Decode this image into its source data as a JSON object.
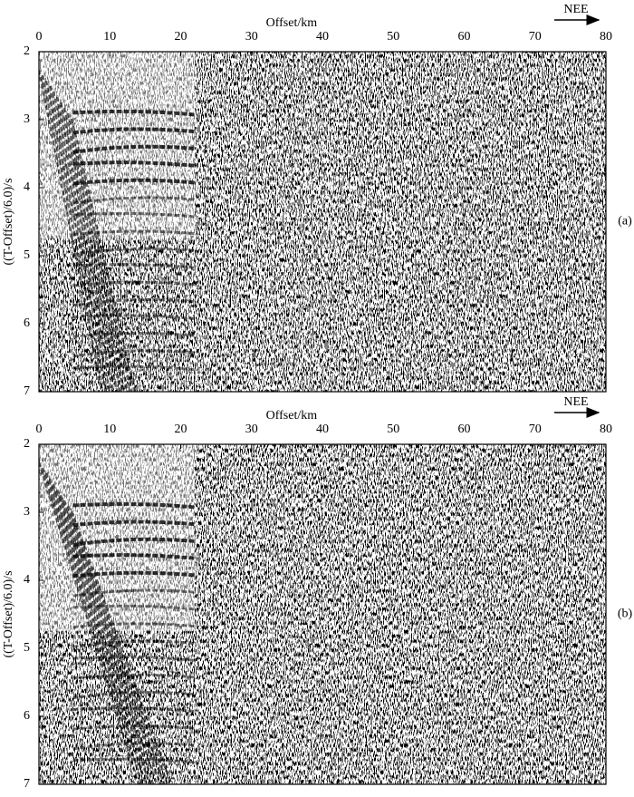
{
  "chart_data": [
    {
      "type": "seismic",
      "panel_label": "(a)",
      "xlabel": "Offset/km",
      "ylabel": "((T-Offset)/6.0)/s",
      "direction": "NEE",
      "xlim": [
        0,
        80
      ],
      "xticks": [
        0,
        10,
        20,
        30,
        40,
        50,
        60,
        70,
        80
      ],
      "ylim": [
        7,
        2
      ],
      "yticks": [
        2,
        3,
        4,
        5,
        6,
        7
      ]
    },
    {
      "type": "seismic",
      "panel_label": "(b)",
      "xlabel": "Offset/km",
      "ylabel": "((T-Offset)/6.0)/s",
      "direction": "NEE",
      "xlim": [
        0,
        80
      ],
      "xticks": [
        0,
        10,
        20,
        30,
        40,
        50,
        60,
        70,
        80
      ],
      "ylim": [
        7,
        2
      ],
      "yticks": [
        2,
        3,
        4,
        5,
        6,
        7
      ]
    }
  ]
}
